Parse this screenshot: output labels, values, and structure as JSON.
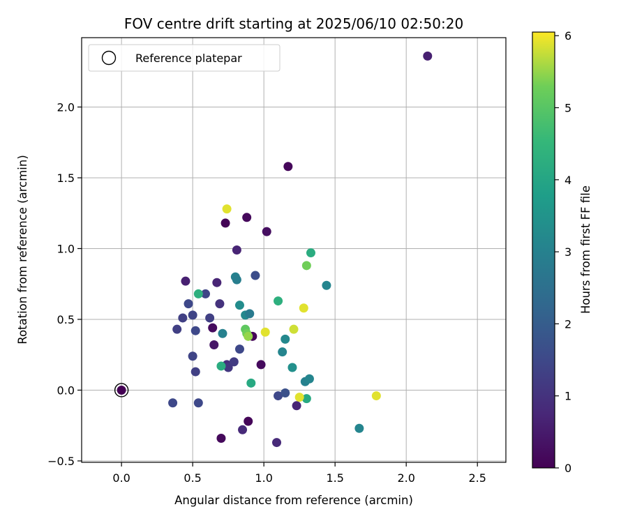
{
  "chart_data": {
    "type": "scatter",
    "title": "FOV centre drift starting at 2025/06/10 02:50:20",
    "xlabel": "Angular distance from reference (arcmin)",
    "ylabel": "Rotation from reference (arcmin)",
    "xlim": [
      -0.28,
      2.7
    ],
    "ylim": [
      -0.51,
      2.49
    ],
    "xticks": [
      0.0,
      0.5,
      1.0,
      1.5,
      2.0,
      2.5
    ],
    "xtick_labels": [
      "0.0",
      "0.5",
      "1.0",
      "1.5",
      "2.0",
      "2.5"
    ],
    "yticks": [
      -0.5,
      0.0,
      0.5,
      1.0,
      1.5,
      2.0
    ],
    "ytick_labels": [
      "−0.5",
      "0.0",
      "0.5",
      "1.0",
      "1.5",
      "2.0"
    ],
    "grid": true,
    "legend": {
      "position": "upper-left",
      "entries": [
        "Reference platepar"
      ]
    },
    "colorbar": {
      "label": "Hours from first FF file",
      "colormap": "viridis",
      "range": [
        0,
        6.05
      ],
      "ticks": [
        0,
        1,
        2,
        3,
        4,
        5,
        6
      ],
      "tick_labels": [
        "0",
        "1",
        "2",
        "3",
        "4",
        "5",
        "6"
      ]
    },
    "reference_point": {
      "x": 0.0,
      "y": 0.0
    },
    "points": [
      {
        "x": 0.0,
        "y": 0.0,
        "c": 0.0
      },
      {
        "x": 0.64,
        "y": 0.44,
        "c": 0.2
      },
      {
        "x": 0.73,
        "y": 1.18,
        "c": 0.05
      },
      {
        "x": 0.88,
        "y": 1.22,
        "c": 0.15
      },
      {
        "x": 1.02,
        "y": 1.12,
        "c": 0.25
      },
      {
        "x": 1.17,
        "y": 1.58,
        "c": 0.12
      },
      {
        "x": 0.92,
        "y": 0.38,
        "c": 0.1
      },
      {
        "x": 0.98,
        "y": 0.18,
        "c": 0.18
      },
      {
        "x": 0.89,
        "y": -0.22,
        "c": 0.1
      },
      {
        "x": 0.7,
        "y": -0.34,
        "c": 0.15
      },
      {
        "x": 0.65,
        "y": 0.32,
        "c": 0.4
      },
      {
        "x": 2.15,
        "y": 2.36,
        "c": 0.6
      },
      {
        "x": 0.85,
        "y": -0.28,
        "c": 0.8
      },
      {
        "x": 1.09,
        "y": -0.37,
        "c": 0.8
      },
      {
        "x": 1.23,
        "y": -0.11,
        "c": 0.7
      },
      {
        "x": 0.45,
        "y": 0.77,
        "c": 0.6
      },
      {
        "x": 0.67,
        "y": 0.76,
        "c": 0.7
      },
      {
        "x": 0.81,
        "y": 0.99,
        "c": 0.7
      },
      {
        "x": 0.74,
        "y": 0.18,
        "c": 0.9
      },
      {
        "x": 0.75,
        "y": 0.16,
        "c": 1.1
      },
      {
        "x": 0.79,
        "y": 0.2,
        "c": 1.2
      },
      {
        "x": 0.69,
        "y": 0.61,
        "c": 1.0
      },
      {
        "x": 0.59,
        "y": 0.68,
        "c": 1.4
      },
      {
        "x": 0.47,
        "y": 0.61,
        "c": 1.5
      },
      {
        "x": 0.43,
        "y": 0.51,
        "c": 1.3
      },
      {
        "x": 0.5,
        "y": 0.53,
        "c": 1.4
      },
      {
        "x": 0.39,
        "y": 0.43,
        "c": 1.3
      },
      {
        "x": 0.52,
        "y": 0.42,
        "c": 1.5
      },
      {
        "x": 0.62,
        "y": 0.51,
        "c": 1.3
      },
      {
        "x": 0.5,
        "y": 0.24,
        "c": 1.4
      },
      {
        "x": 0.52,
        "y": 0.13,
        "c": 1.3
      },
      {
        "x": 0.36,
        "y": -0.09,
        "c": 1.5
      },
      {
        "x": 0.54,
        "y": -0.09,
        "c": 1.5
      },
      {
        "x": 0.83,
        "y": 0.29,
        "c": 1.5
      },
      {
        "x": 0.94,
        "y": 0.81,
        "c": 1.6
      },
      {
        "x": 1.1,
        "y": -0.04,
        "c": 1.5
      },
      {
        "x": 1.15,
        "y": -0.02,
        "c": 1.7
      },
      {
        "x": 0.8,
        "y": 0.8,
        "c": 3.0
      },
      {
        "x": 0.81,
        "y": 0.78,
        "c": 2.9
      },
      {
        "x": 0.83,
        "y": 0.6,
        "c": 3.3
      },
      {
        "x": 0.87,
        "y": 0.53,
        "c": 3.2
      },
      {
        "x": 0.9,
        "y": 0.54,
        "c": 2.8
      },
      {
        "x": 0.71,
        "y": 0.4,
        "c": 3.0
      },
      {
        "x": 1.13,
        "y": 0.27,
        "c": 3.1
      },
      {
        "x": 1.15,
        "y": 0.36,
        "c": 3.2
      },
      {
        "x": 1.2,
        "y": 0.16,
        "c": 3.4
      },
      {
        "x": 1.29,
        "y": 0.06,
        "c": 3.0
      },
      {
        "x": 1.32,
        "y": 0.08,
        "c": 3.1
      },
      {
        "x": 1.44,
        "y": 0.74,
        "c": 3.1
      },
      {
        "x": 1.67,
        "y": -0.27,
        "c": 3.1
      },
      {
        "x": 0.7,
        "y": 0.17,
        "c": 4.2
      },
      {
        "x": 0.91,
        "y": 0.05,
        "c": 4.1
      },
      {
        "x": 0.54,
        "y": 0.68,
        "c": 4.3
      },
      {
        "x": 1.1,
        "y": 0.63,
        "c": 4.3
      },
      {
        "x": 1.33,
        "y": 0.97,
        "c": 4.2
      },
      {
        "x": 1.3,
        "y": -0.06,
        "c": 4.1
      },
      {
        "x": 0.87,
        "y": 0.43,
        "c": 5.1
      },
      {
        "x": 0.88,
        "y": 0.4,
        "c": 5.3
      },
      {
        "x": 0.89,
        "y": 0.38,
        "c": 5.5
      },
      {
        "x": 1.3,
        "y": 0.88,
        "c": 5.3
      },
      {
        "x": 0.74,
        "y": 1.28,
        "c": 5.9
      },
      {
        "x": 1.01,
        "y": 0.41,
        "c": 5.9
      },
      {
        "x": 1.21,
        "y": 0.43,
        "c": 5.8
      },
      {
        "x": 1.28,
        "y": 0.58,
        "c": 5.9
      },
      {
        "x": 1.25,
        "y": -0.05,
        "c": 5.9
      },
      {
        "x": 1.79,
        "y": -0.04,
        "c": 5.9
      }
    ]
  }
}
